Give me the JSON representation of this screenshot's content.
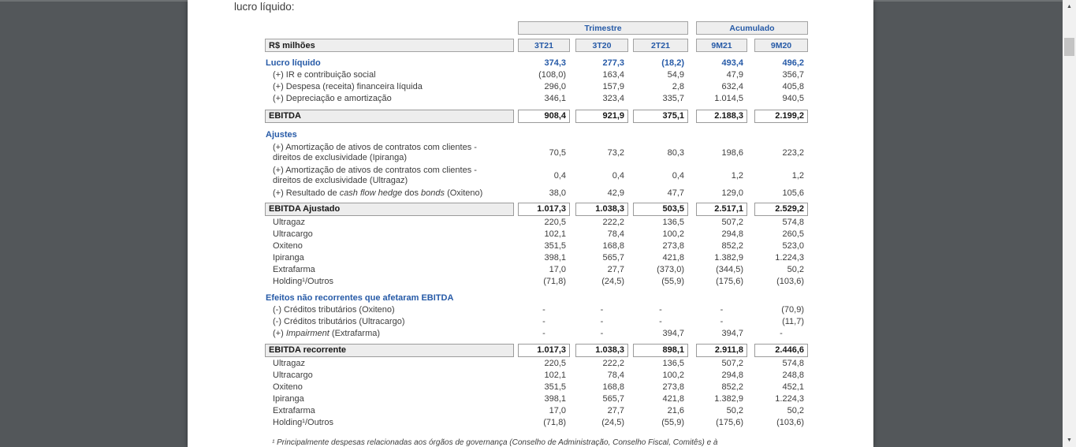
{
  "document": {
    "intro_text": "lucro líquido:",
    "footnote": "¹ Principalmente despesas relacionadas aos órgãos de governança (Conselho de Administração, Conselho Fiscal, Comitês) e à"
  },
  "table": {
    "unit_label": "R$ milhões",
    "group_headers": [
      {
        "label": "Trimestre"
      },
      {
        "label": "Acumulado"
      }
    ],
    "columns": [
      "3T21",
      "3T20",
      "2T21",
      "9M21",
      "9M20"
    ],
    "rows": [
      {
        "type": "lead",
        "label": "Lucro líquido",
        "values": [
          "374,3",
          "277,3",
          "(18,2)",
          "493,4",
          "496,2"
        ]
      },
      {
        "type": "item",
        "label": "(+) IR e contribuição social",
        "values": [
          "(108,0)",
          "163,4",
          "54,9",
          "47,9",
          "356,7"
        ]
      },
      {
        "type": "item",
        "label": "(+) Despesa (receita) financeira líquida",
        "values": [
          "296,0",
          "157,9",
          "2,8",
          "632,4",
          "405,8"
        ]
      },
      {
        "type": "item",
        "label": "(+) Depreciação e amortização",
        "values": [
          "346,1",
          "323,4",
          "335,7",
          "1.014,5",
          "940,5"
        ]
      },
      {
        "type": "total",
        "label": "EBITDA",
        "gap_before": 7,
        "values": [
          "908,4",
          "921,9",
          "375,1",
          "2.188,3",
          "2.199,2"
        ]
      },
      {
        "type": "section",
        "label": "Ajustes",
        "gap_before": 7
      },
      {
        "type": "item2",
        "gap_before": 1,
        "lines": [
          "(+) Amortização de ativos de contratos com clientes -",
          "direitos de exclusividade (Ipiranga)"
        ],
        "values": [
          "70,5",
          "73,2",
          "80,3",
          "198,6",
          "223,2"
        ]
      },
      {
        "type": "item2",
        "lines": [
          "(+) Amortização de ativos de contratos com clientes -",
          "direitos de exclusividade (Ultragaz)"
        ],
        "values": [
          "0,4",
          "0,4",
          "0,4",
          "1,2",
          "1,2"
        ]
      },
      {
        "type": "item",
        "parts": [
          {
            "t": "(+) Resultado de "
          },
          {
            "t": "cash flow hedge",
            "i": true
          },
          {
            "t": " dos "
          },
          {
            "t": "bonds",
            "i": true
          },
          {
            "t": " (Oxiteno)"
          }
        ],
        "values": [
          "38,0",
          "42,9",
          "47,7",
          "129,0",
          "105,6"
        ]
      },
      {
        "type": "total",
        "label": "EBITDA Ajustado",
        "gap_before": 5,
        "values": [
          "1.017,3",
          "1.038,3",
          "503,5",
          "2.517,1",
          "2.529,2"
        ]
      },
      {
        "type": "item",
        "label": "Ultragaz",
        "values": [
          "220,5",
          "222,2",
          "136,5",
          "507,2",
          "574,8"
        ]
      },
      {
        "type": "item",
        "label": "Ultracargo",
        "values": [
          "102,1",
          "78,4",
          "100,2",
          "294,8",
          "260,5"
        ]
      },
      {
        "type": "item",
        "label": "Oxiteno",
        "values": [
          "351,5",
          "168,8",
          "273,8",
          "852,2",
          "523,0"
        ]
      },
      {
        "type": "item",
        "label": "Ipiranga",
        "values": [
          "398,1",
          "565,7",
          "421,8",
          "1.382,9",
          "1.224,3"
        ]
      },
      {
        "type": "item",
        "label": "Extrafarma",
        "values": [
          "17,0",
          "27,7",
          "(373,0)",
          "(344,5)",
          "50,2"
        ]
      },
      {
        "type": "item",
        "label": "Holding¹/Outros",
        "values": [
          "(71,8)",
          "(24,5)",
          "(55,9)",
          "(175,6)",
          "(103,6)"
        ]
      },
      {
        "type": "section",
        "label": "Efeitos não recorrentes que afetaram EBITDA",
        "gap_before": 6
      },
      {
        "type": "item",
        "label": "(-) Créditos tributários (Oxiteno)",
        "values": [
          "-",
          "-",
          "-",
          "-",
          "(70,9)"
        ]
      },
      {
        "type": "item",
        "label": "(-) Créditos tributários (Ultracargo)",
        "values": [
          "-",
          "-",
          "-",
          "-",
          "(11,7)"
        ]
      },
      {
        "type": "item",
        "parts": [
          {
            "t": "(+) "
          },
          {
            "t": "Impairment",
            "i": true
          },
          {
            "t": " (Extrafarma)"
          }
        ],
        "values": [
          "-",
          "-",
          "394,7",
          "394,7",
          "-"
        ]
      },
      {
        "type": "total",
        "label": "EBITDA recorrente",
        "gap_before": 6,
        "values": [
          "1.017,3",
          "1.038,3",
          "898,1",
          "2.911,8",
          "2.446,6"
        ]
      },
      {
        "type": "item",
        "label": "Ultragaz",
        "values": [
          "220,5",
          "222,2",
          "136,5",
          "507,2",
          "574,8"
        ]
      },
      {
        "type": "item",
        "label": "Ultracargo",
        "values": [
          "102,1",
          "78,4",
          "100,2",
          "294,8",
          "248,8"
        ]
      },
      {
        "type": "item",
        "label": "Oxiteno",
        "values": [
          "351,5",
          "168,8",
          "273,8",
          "852,2",
          "452,1"
        ]
      },
      {
        "type": "item",
        "label": "Ipiranga",
        "values": [
          "398,1",
          "565,7",
          "421,8",
          "1.382,9",
          "1.224,3"
        ]
      },
      {
        "type": "item",
        "label": "Extrafarma",
        "values": [
          "17,0",
          "27,7",
          "21,6",
          "50,2",
          "50,2"
        ]
      },
      {
        "type": "item",
        "label": "Holding¹/Outros",
        "values": [
          "(71,8)",
          "(24,5)",
          "(55,9)",
          "(175,6)",
          "(103,6)"
        ]
      }
    ]
  },
  "scrollbar": {
    "up_arrow": "▲",
    "down_arrow": "▼"
  },
  "colors": {
    "viewer_background": "#53575a",
    "page_background": "#ffffff",
    "accent_blue": "#265aa7",
    "cell_fill": "#eeeeee",
    "cell_border": "#a3a3a3",
    "body_text": "#3d3d3d"
  }
}
